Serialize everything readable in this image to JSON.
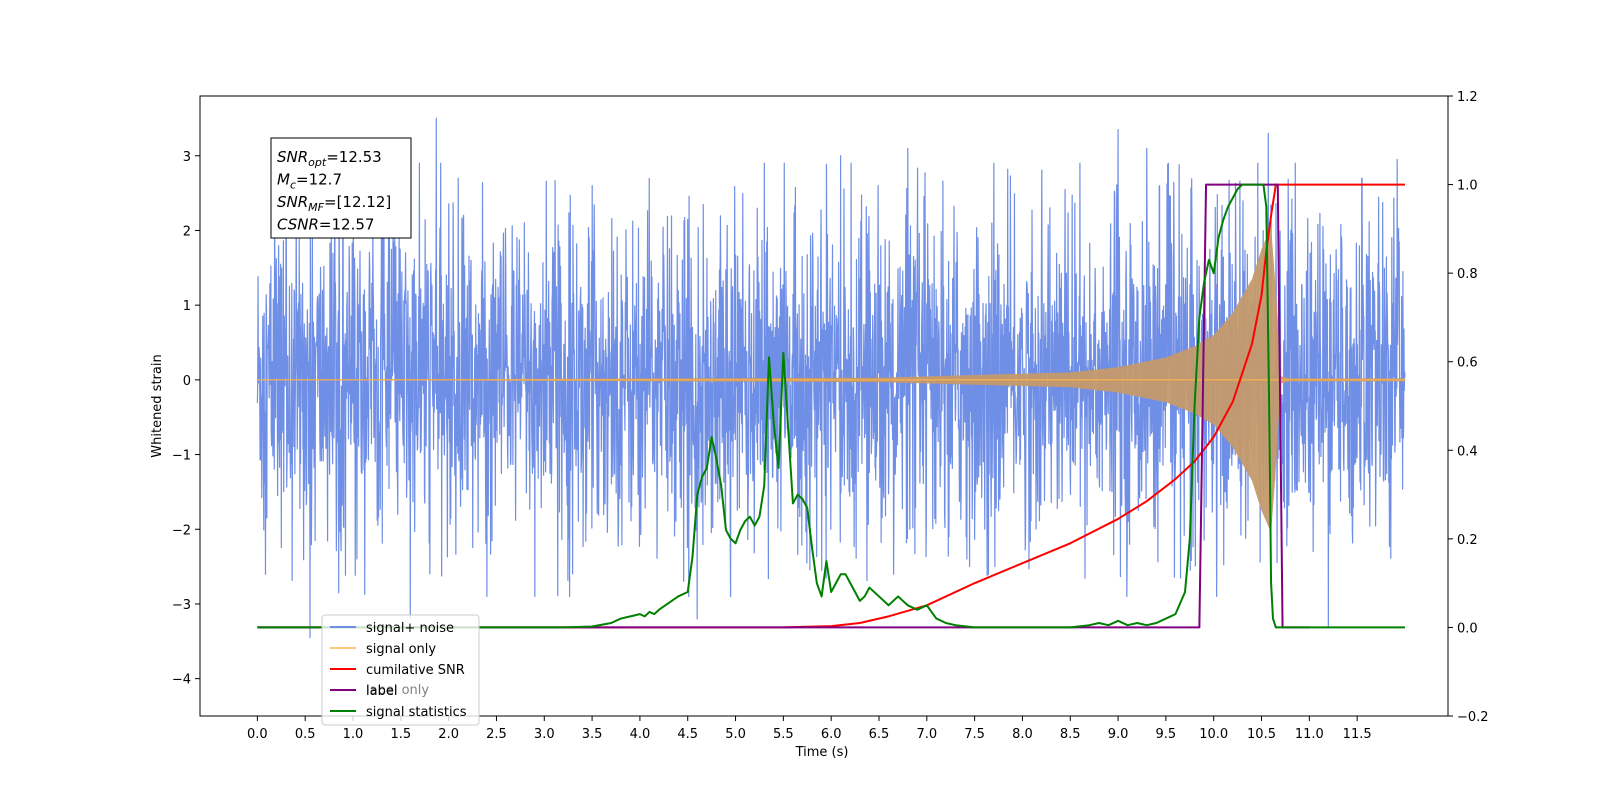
{
  "chart_data": {
    "type": "line",
    "xlabel": "Time (s)",
    "ylabel": "Whitened strain",
    "ylabel_right": "",
    "xlim": [
      -0.6,
      12.45
    ],
    "ylim": [
      -4.5,
      3.8
    ],
    "ylim_right": [
      -0.2,
      1.2
    ],
    "x_ticks": [
      0.0,
      0.5,
      1.0,
      1.5,
      2.0,
      2.5,
      3.0,
      3.5,
      4.0,
      4.5,
      5.0,
      5.5,
      6.0,
      6.5,
      7.0,
      7.5,
      8.0,
      8.5,
      9.0,
      9.5,
      10.0,
      10.5,
      11.0,
      11.5
    ],
    "x_tick_labels": [
      "0.0",
      "0.5",
      "1.0",
      "1.5",
      "2.0",
      "2.5",
      "3.0",
      "3.5",
      "4.0",
      "4.5",
      "5.0",
      "5.5",
      "6.0",
      "6.5",
      "7.0",
      "7.5",
      "8.0",
      "8.5",
      "9.0",
      "9.5",
      "10.0",
      "10.5",
      "11.0",
      "11.5"
    ],
    "y_ticks": [
      -4,
      -3,
      -2,
      -1,
      0,
      1,
      2,
      3
    ],
    "y_tick_labels": [
      "−4",
      "−3",
      "−2",
      "−1",
      "0",
      "1",
      "2",
      "3"
    ],
    "y_ticks_right": [
      -0.2,
      0.0,
      0.2,
      0.4,
      0.6,
      0.8,
      1.0,
      1.2
    ],
    "y_tick_labels_right": [
      "−0.2",
      "0.0",
      "0.2",
      "0.4",
      "0.6",
      "0.8",
      "1.0",
      "1.2"
    ],
    "grid": false,
    "legend_position": "lower-left",
    "colors": {
      "noise": "#6f8ee6",
      "signal": "#ffb347",
      "cumulative": "#ff0000",
      "label": "#800080",
      "stats": "#008000",
      "envelope_fill": "#c49a6c"
    },
    "annotation": {
      "lines": [
        {
          "sym": "SNR",
          "sub": "opt",
          "value": "=12.53"
        },
        {
          "sym": "M",
          "sub": "c",
          "value": "=12.7"
        },
        {
          "sym": "SNR",
          "sub": "MF",
          "value": "=[12.12]"
        },
        {
          "sym": "CSNR",
          "sub": "",
          "value": "=12.57"
        }
      ]
    },
    "series": [
      {
        "name": "signal+ noise",
        "axis": "left",
        "kind": "noise",
        "x_range": [
          0.0,
          12.0
        ],
        "typical_amplitude": 1.6,
        "peak_values": [
          {
            "x": 0.3,
            "y": 2.4
          },
          {
            "x": 0.55,
            "y": -3.45
          },
          {
            "x": 0.85,
            "y": -2.85
          },
          {
            "x": 1.3,
            "y": 2.6
          },
          {
            "x": 1.6,
            "y": -3.2
          },
          {
            "x": 1.87,
            "y": 3.5
          },
          {
            "x": 2.1,
            "y": 2.7
          },
          {
            "x": 2.9,
            "y": -2.9
          },
          {
            "x": 3.5,
            "y": 2.6
          },
          {
            "x": 4.6,
            "y": -3.2
          },
          {
            "x": 5.3,
            "y": 2.9
          },
          {
            "x": 6.1,
            "y": 3.0
          },
          {
            "x": 6.8,
            "y": 3.1
          },
          {
            "x": 7.7,
            "y": 2.9
          },
          {
            "x": 8.6,
            "y": 2.9
          },
          {
            "x": 9.0,
            "y": 3.35
          },
          {
            "x": 9.3,
            "y": 3.1
          },
          {
            "x": 10.57,
            "y": 3.3
          },
          {
            "x": 11.2,
            "y": -3.3
          },
          {
            "x": 11.55,
            "y": 2.7
          },
          {
            "x": 11.92,
            "y": 2.95
          }
        ]
      },
      {
        "name": "signal only",
        "axis": "left",
        "kind": "chirp",
        "envelope": {
          "x": [
            0.0,
            6.5,
            8.5,
            9.0,
            9.5,
            9.8,
            10.0,
            10.2,
            10.4,
            10.5,
            10.6,
            10.65,
            10.7,
            10.8,
            12.0
          ],
          "amplitude": [
            0.0,
            0.03,
            0.1,
            0.17,
            0.3,
            0.45,
            0.6,
            0.9,
            1.35,
            1.75,
            2.05,
            1.2,
            0.05,
            0.02,
            0.02
          ]
        }
      },
      {
        "name": "cumilative SNR",
        "axis": "right",
        "x": [
          0.0,
          5.5,
          6.0,
          6.3,
          6.6,
          7.0,
          7.5,
          8.0,
          8.5,
          9.0,
          9.3,
          9.6,
          9.8,
          10.0,
          10.2,
          10.4,
          10.5,
          10.55,
          10.6,
          10.65,
          12.0
        ],
        "values": [
          0.0,
          0.0,
          0.003,
          0.01,
          0.025,
          0.05,
          0.1,
          0.145,
          0.19,
          0.245,
          0.285,
          0.335,
          0.375,
          0.43,
          0.51,
          0.64,
          0.75,
          0.85,
          0.93,
          1.0,
          1.0
        ]
      },
      {
        "name": "label",
        "axis": "right",
        "x": [
          0.0,
          9.85,
          9.92,
          10.67,
          10.72,
          11.0
        ],
        "values": [
          0.0,
          0.0,
          1.0,
          1.0,
          0.0,
          0.0
        ]
      },
      {
        "name": "label only",
        "axis": "right",
        "x": [],
        "values": []
      },
      {
        "name": "signal statistics",
        "axis": "right",
        "x": [
          0.0,
          3.2,
          3.5,
          3.7,
          3.8,
          3.9,
          4.0,
          4.05,
          4.1,
          4.15,
          4.2,
          4.3,
          4.4,
          4.5,
          4.55,
          4.6,
          4.65,
          4.7,
          4.75,
          4.8,
          4.85,
          4.9,
          4.95,
          5.0,
          5.05,
          5.1,
          5.15,
          5.2,
          5.25,
          5.3,
          5.35,
          5.4,
          5.45,
          5.5,
          5.55,
          5.6,
          5.65,
          5.7,
          5.75,
          5.8,
          5.85,
          5.9,
          5.95,
          6.0,
          6.05,
          6.1,
          6.15,
          6.2,
          6.25,
          6.3,
          6.35,
          6.4,
          6.5,
          6.6,
          6.7,
          6.8,
          6.9,
          7.0,
          7.1,
          7.2,
          7.3,
          7.5,
          8.0,
          8.5,
          8.7,
          8.8,
          8.9,
          9.0,
          9.1,
          9.2,
          9.3,
          9.4,
          9.5,
          9.6,
          9.7,
          9.75,
          9.8,
          9.85,
          9.9,
          9.95,
          10.0,
          10.05,
          10.1,
          10.15,
          10.2,
          10.25,
          10.3,
          10.35,
          10.4,
          10.45,
          10.5,
          10.52,
          10.55,
          10.58,
          10.6,
          10.62,
          10.65,
          10.7,
          11.0,
          12.0
        ],
        "values": [
          0.0,
          0.0,
          0.002,
          0.01,
          0.02,
          0.025,
          0.03,
          0.025,
          0.035,
          0.03,
          0.04,
          0.055,
          0.07,
          0.08,
          0.16,
          0.3,
          0.34,
          0.36,
          0.43,
          0.38,
          0.32,
          0.22,
          0.2,
          0.19,
          0.22,
          0.24,
          0.25,
          0.23,
          0.25,
          0.32,
          0.61,
          0.46,
          0.36,
          0.62,
          0.45,
          0.28,
          0.3,
          0.29,
          0.27,
          0.18,
          0.1,
          0.07,
          0.15,
          0.08,
          0.1,
          0.12,
          0.12,
          0.1,
          0.08,
          0.06,
          0.07,
          0.09,
          0.07,
          0.05,
          0.07,
          0.05,
          0.04,
          0.05,
          0.02,
          0.01,
          0.005,
          0.0,
          0.0,
          0.0,
          0.005,
          0.01,
          0.005,
          0.015,
          0.005,
          0.01,
          0.005,
          0.01,
          0.02,
          0.03,
          0.08,
          0.2,
          0.5,
          0.7,
          0.78,
          0.83,
          0.8,
          0.88,
          0.92,
          0.95,
          0.97,
          0.99,
          1.0,
          1.0,
          1.0,
          1.0,
          1.0,
          1.0,
          0.95,
          0.5,
          0.1,
          0.02,
          0.0,
          0.0,
          0.0,
          0.0
        ]
      }
    ]
  }
}
